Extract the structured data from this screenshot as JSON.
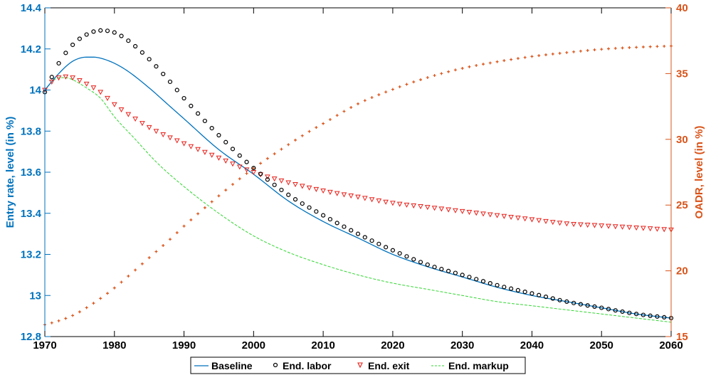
{
  "chart_data": {
    "type": "line",
    "xlabel": "",
    "ylabel_left": "Entry rate, level (in %)",
    "ylabel_right": "OADR, level (in %)",
    "xlim": [
      1970,
      2060
    ],
    "ylim_left": [
      12.8,
      14.4
    ],
    "ylim_right": [
      15,
      40
    ],
    "x_ticks": [
      1970,
      1980,
      1990,
      2000,
      2010,
      2020,
      2030,
      2040,
      2050,
      2060
    ],
    "y_left_ticks": [
      "12.8",
      "13",
      "13.2",
      "13.4",
      "13.6",
      "13.8",
      "14",
      "14.2",
      "14.4"
    ],
    "y_right_ticks": [
      "15",
      "20",
      "25",
      "30",
      "35",
      "40"
    ],
    "grid": false,
    "legend_position": "bottom",
    "colors": {
      "left_axis": "#0072BD",
      "right_axis": "#D95319",
      "baseline": "#0072BD",
      "end_labor": "#000000",
      "end_exit": "#E8201A",
      "end_markup": "#33D633",
      "oadr": "#D95319"
    },
    "series": [
      {
        "name": "Baseline",
        "axis": "left",
        "style": "solid-line",
        "x": [
          1970,
          1972,
          1974,
          1976,
          1977,
          1978,
          1980,
          1982,
          1985,
          1988,
          1990,
          1995,
          2000,
          2005,
          2010,
          2015,
          2020,
          2025,
          2030,
          2035,
          2040,
          2045,
          2050,
          2055,
          2060
        ],
        "values": [
          14.0,
          14.08,
          14.14,
          14.16,
          14.16,
          14.155,
          14.13,
          14.09,
          14.01,
          13.92,
          13.86,
          13.71,
          13.59,
          13.46,
          13.36,
          13.28,
          13.2,
          13.14,
          13.09,
          13.04,
          13.0,
          12.97,
          12.94,
          12.91,
          12.89
        ]
      },
      {
        "name": "End. labor",
        "axis": "left",
        "style": "circle-markers",
        "x": [
          1970,
          1972,
          1974,
          1976,
          1978,
          1980,
          1982,
          1985,
          1988,
          1990,
          1995,
          2000,
          2005,
          2010,
          2015,
          2020,
          2025,
          2030,
          2035,
          2040,
          2045,
          2050,
          2055,
          2060
        ],
        "values": [
          13.99,
          14.13,
          14.22,
          14.27,
          14.29,
          14.28,
          14.24,
          14.15,
          14.04,
          13.96,
          13.78,
          13.62,
          13.49,
          13.39,
          13.3,
          13.22,
          13.15,
          13.1,
          13.05,
          13.01,
          12.97,
          12.94,
          12.91,
          12.89
        ]
      },
      {
        "name": "End. exit",
        "axis": "left",
        "style": "triangle-markers",
        "x": [
          1970,
          1971,
          1972,
          1973,
          1974,
          1976,
          1978,
          1980,
          1983,
          1986,
          1990,
          1995,
          2000,
          2005,
          2010,
          2015,
          2020,
          2025,
          2030,
          2035,
          2040,
          2045,
          2050,
          2055,
          2060
        ],
        "values": [
          14.0,
          14.04,
          14.06,
          14.065,
          14.06,
          14.03,
          13.99,
          13.93,
          13.86,
          13.8,
          13.74,
          13.67,
          13.6,
          13.55,
          13.51,
          13.48,
          13.45,
          13.43,
          13.41,
          13.39,
          13.37,
          13.35,
          13.34,
          13.33,
          13.32
        ]
      },
      {
        "name": "End. markup",
        "axis": "left",
        "style": "dashed-line",
        "x": [
          1970,
          1971,
          1972,
          1973,
          1974,
          1976,
          1978,
          1980,
          1983,
          1986,
          1990,
          1995,
          2000,
          2005,
          2010,
          2015,
          2020,
          2025,
          2030,
          2035,
          2040,
          2045,
          2050,
          2055,
          2060
        ],
        "values": [
          14.0,
          14.04,
          14.06,
          14.06,
          14.05,
          14.01,
          13.96,
          13.87,
          13.76,
          13.65,
          13.53,
          13.4,
          13.29,
          13.21,
          13.15,
          13.1,
          13.06,
          13.03,
          13.0,
          12.97,
          12.95,
          12.93,
          12.91,
          12.89,
          12.87
        ]
      },
      {
        "axis": "right",
        "style": "plus-markers",
        "x": [
          1970,
          1972,
          1974,
          1976,
          1978,
          1980,
          1982,
          1985,
          1988,
          1990,
          1993,
          1995,
          1998,
          2000,
          2003,
          2005,
          2008,
          2010,
          2015,
          2020,
          2025,
          2030,
          2035,
          2040,
          2045,
          2050,
          2055,
          2060
        ],
        "values": [
          15.9,
          16.2,
          16.6,
          17.2,
          17.9,
          18.7,
          19.6,
          21.0,
          22.4,
          23.4,
          24.8,
          25.7,
          27.0,
          27.8,
          28.9,
          29.6,
          30.6,
          31.2,
          32.7,
          33.8,
          34.7,
          35.4,
          35.9,
          36.3,
          36.6,
          36.85,
          37.0,
          37.1
        ]
      }
    ]
  }
}
